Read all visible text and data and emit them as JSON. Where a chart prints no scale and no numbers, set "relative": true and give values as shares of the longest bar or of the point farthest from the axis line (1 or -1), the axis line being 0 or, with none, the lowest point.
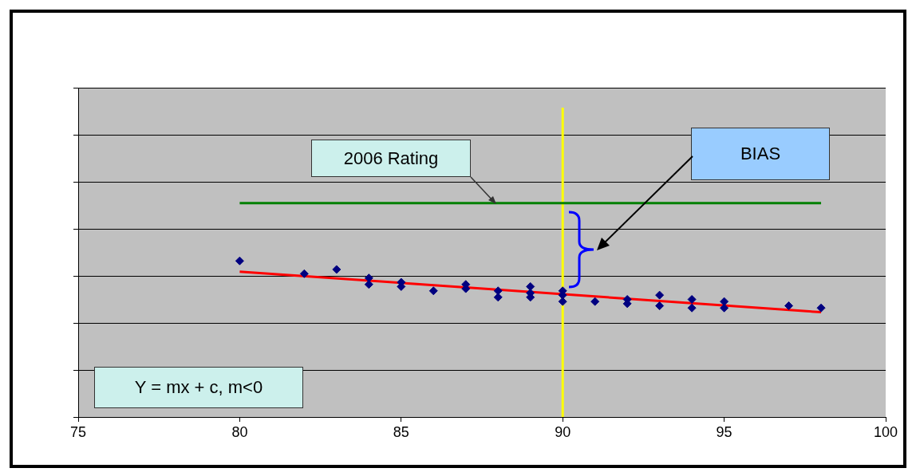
{
  "chart_data": {
    "type": "scatter",
    "relative": true,
    "xlim": [
      75,
      100
    ],
    "xticks": [
      75,
      80,
      85,
      90,
      95,
      100
    ],
    "grid": true,
    "legend": false,
    "marker": "diamond",
    "series": [
      {
        "color": "#000080",
        "x": [
          80,
          82,
          83,
          84,
          84,
          85,
          85,
          86,
          87,
          87,
          88,
          88,
          89,
          89,
          89,
          90,
          90,
          90,
          91,
          92,
          92,
          93,
          93,
          94,
          94,
          95,
          95,
          97,
          98
        ],
        "values": [
          0.73,
          0.67,
          0.69,
          0.65,
          0.62,
          0.63,
          0.61,
          0.59,
          0.62,
          0.6,
          0.59,
          0.56,
          0.61,
          0.58,
          0.56,
          0.59,
          0.57,
          0.54,
          0.54,
          0.55,
          0.53,
          0.57,
          0.52,
          0.55,
          0.51,
          0.54,
          0.51,
          0.52,
          0.51
        ]
      },
      {
        "type": "line",
        "marker": "none",
        "color": "#ff0000",
        "x": [
          80,
          98
        ],
        "values": [
          0.68,
          0.49
        ]
      },
      {
        "type": "line",
        "marker": "none",
        "color": "#008000",
        "x": [
          80,
          98
        ],
        "values": [
          1,
          1
        ]
      }
    ],
    "ref_lines": [
      {
        "axis": "x",
        "value": 90,
        "color": "#ffff00"
      }
    ],
    "annotations": [
      "2006 Rating",
      "BIAS",
      "Y = mx + c, m<0"
    ]
  }
}
